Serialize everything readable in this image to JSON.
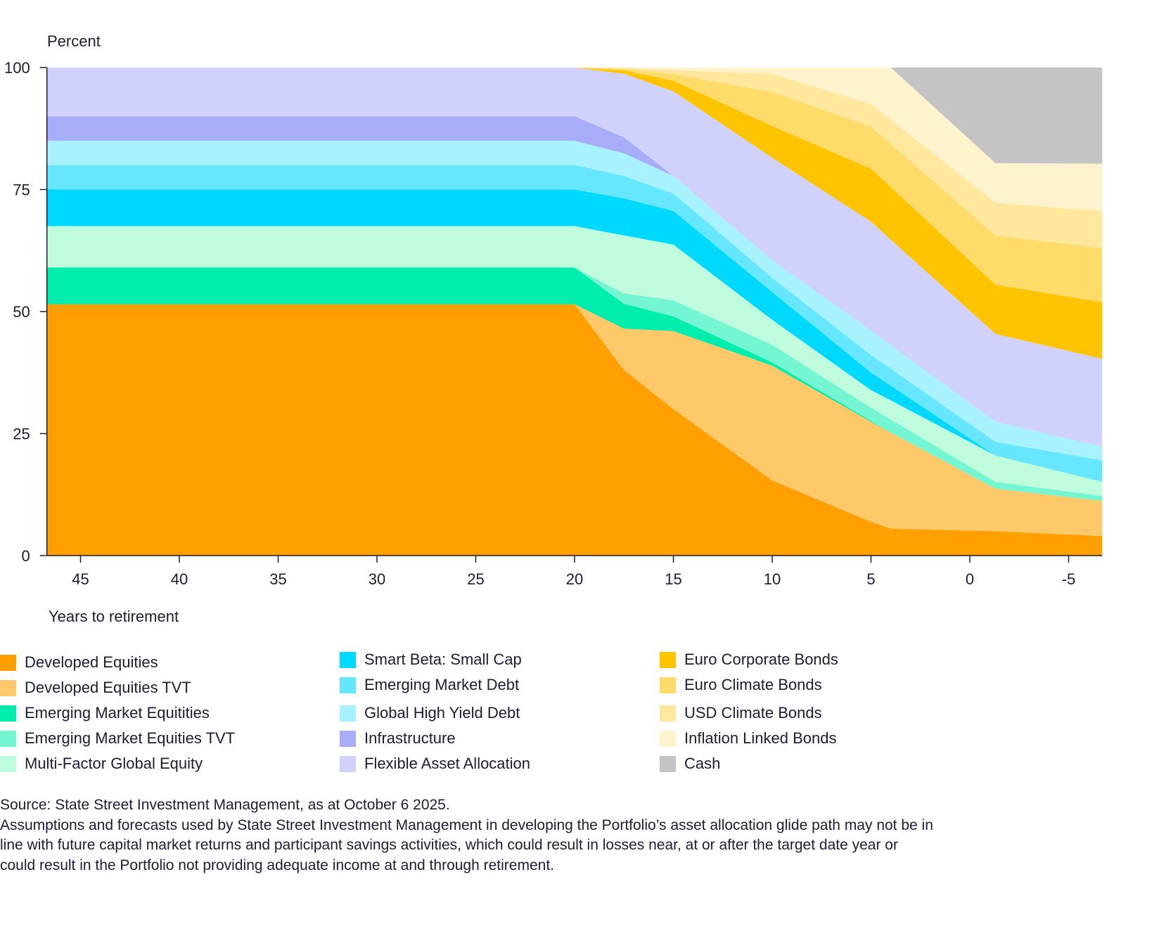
{
  "chart_data": {
    "type": "area",
    "stacked": true,
    "ylabel": "Percent",
    "xlabel": "Years to retirement",
    "ylim": [
      0,
      100
    ],
    "xlim": [
      46.7,
      -6.7
    ],
    "x_reversed": true,
    "yticks": [
      100,
      75,
      50,
      25,
      0
    ],
    "xticks": [
      45,
      40,
      35,
      30,
      25,
      20,
      15,
      10,
      5,
      0,
      -5
    ],
    "grid": false,
    "legend_position": "bottom",
    "x": [
      46.7,
      20,
      17.5,
      15,
      10,
      5,
      4,
      -1.3,
      -6.7
    ],
    "series": [
      {
        "name": "Developed Equities",
        "color": "#FFA000",
        "values": [
          51.5,
          51.5,
          38,
          30,
          15.4,
          6.9,
          5.5,
          5,
          4
        ]
      },
      {
        "name": "Developed Equities TVT",
        "color": "#FFC869",
        "values": [
          0,
          0,
          8.5,
          16,
          23.5,
          20.5,
          19.7,
          8.7,
          7.2
        ]
      },
      {
        "name": "Emerging Market Equitities",
        "color": "#00EDAD",
        "values": [
          7.5,
          7.5,
          5.1,
          3,
          0.7,
          0.2,
          0,
          0,
          0
        ]
      },
      {
        "name": "Emerging Market Equities TVT",
        "color": "#74F6D2",
        "values": [
          0,
          0,
          2.1,
          3.3,
          3.6,
          2.7,
          2.7,
          1.4,
          1
        ]
      },
      {
        "name": "Multi-Factor Global Equity",
        "color": "#BFFCDD",
        "values": [
          8.5,
          8.5,
          11.9,
          11.4,
          5.1,
          3.6,
          3.9,
          5.4,
          2.9
        ]
      },
      {
        "name": "Smart Beta: Small Cap",
        "color": "#00D9FF",
        "values": [
          7.5,
          7.5,
          7.6,
          6.9,
          5.7,
          3.6,
          3,
          0,
          0
        ]
      },
      {
        "name": "Emerging Market Debt",
        "color": "#66E6FF",
        "values": [
          5,
          5,
          4.6,
          3.6,
          2.9,
          3.6,
          3.5,
          2.8,
          4.4
        ]
      },
      {
        "name": "Global High Yield Debt",
        "color": "#A8F1FE",
        "values": [
          5,
          5,
          4.6,
          3.6,
          3.6,
          5,
          4.8,
          4.1,
          2.8
        ]
      },
      {
        "name": "Infrastructure",
        "color": "#A7ADF8",
        "values": [
          5,
          5,
          3.3,
          0,
          0,
          0,
          0,
          0,
          0
        ]
      },
      {
        "name": "Flexible Asset Allocation",
        "color": "#D0D2FD",
        "values": [
          10,
          10,
          13,
          17.3,
          21,
          22.3,
          21.6,
          18,
          18
        ]
      },
      {
        "name": "Euro Corporate Bonds",
        "color": "#FFC400",
        "values": [
          0,
          0,
          0.7,
          2.2,
          6.5,
          10.9,
          10.8,
          10.1,
          11.6
        ]
      },
      {
        "name": "Euro Climate Bonds",
        "color": "#FFDC6A",
        "values": [
          0,
          0,
          0.3,
          1.4,
          7,
          8.6,
          8.8,
          10.1,
          11.1
        ]
      },
      {
        "name": "USD Climate Bonds",
        "color": "#FFE79E",
        "values": [
          0,
          0,
          0.3,
          0.8,
          3.7,
          4.6,
          5,
          6.7,
          7.6
        ]
      },
      {
        "name": "Inflation Linked Bonds",
        "color": "#FFF3CE",
        "values": [
          0,
          0,
          0,
          0.5,
          1.3,
          7.5,
          10.7,
          8.1,
          9.7
        ]
      },
      {
        "name": "Cash",
        "color": "#C4C4C4",
        "values": [
          0,
          0,
          0,
          0,
          0,
          0,
          0,
          19.6,
          19.7
        ]
      }
    ]
  },
  "footer": {
    "source": "Source: State Street Investment Management, as at October 6 2025.",
    "disclaimer_lines": [
      "Assumptions and forecasts used by State Street Investment Management in developing the Portfolio’s asset allocation glide path may not be in",
      "line with future capital market returns and participant savings activities, which could result in losses near, at or after the target date year or",
      "could result in the Portfolio not providing adequate income at and through retirement."
    ]
  }
}
